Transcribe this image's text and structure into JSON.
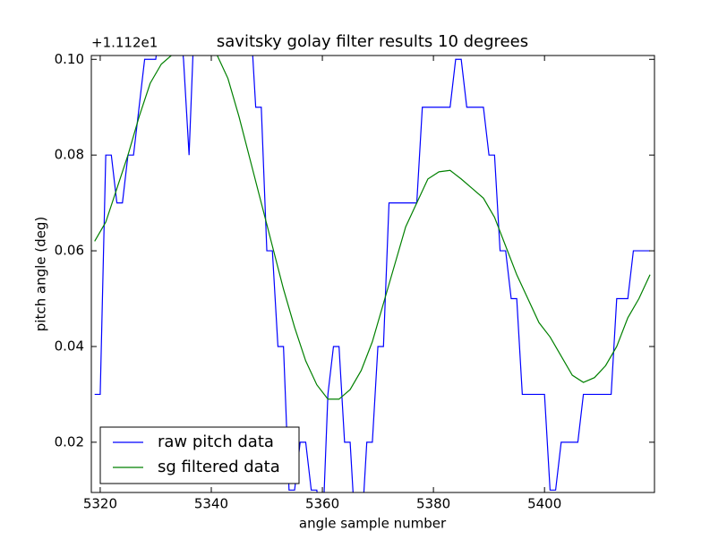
{
  "chart_data": {
    "type": "line",
    "title": "savitsky golay filter results 10 degrees",
    "xlabel": "angle sample number",
    "ylabel": "pitch angle (deg)",
    "offset_label": "+1.112e1",
    "xlim": [
      5318.4,
      5419.8
    ],
    "xticks": [
      5320,
      5340,
      5360,
      5380,
      5400
    ],
    "ylim": [
      0.0095,
      0.1008
    ],
    "yticks": [
      {
        "value": 0.02,
        "label": "0.02"
      },
      {
        "value": 0.04,
        "label": "0.04"
      },
      {
        "value": 0.06,
        "label": "0.06"
      },
      {
        "value": 0.08,
        "label": "0.08"
      },
      {
        "value": 0.1,
        "label": "0.10"
      }
    ],
    "grid": false,
    "legend": "lower left",
    "series": [
      {
        "name": "raw pitch data",
        "color": "#0000ff",
        "x": [
          5319,
          5320,
          5321,
          5322,
          5323,
          5324,
          5325,
          5326,
          5327,
          5328,
          5329,
          5330,
          5331,
          5332,
          5333,
          5334,
          5335,
          5336,
          5337,
          5338,
          5339,
          5340,
          5341,
          5342,
          5343,
          5344,
          5345,
          5346,
          5347,
          5348,
          5349,
          5350,
          5351,
          5352,
          5353,
          5354,
          5355,
          5356,
          5357,
          5358,
          5359,
          5360,
          5361,
          5362,
          5363,
          5364,
          5365,
          5366,
          5367,
          5368,
          5369,
          5370,
          5371,
          5372,
          5373,
          5374,
          5375,
          5376,
          5377,
          5378,
          5379,
          5380,
          5381,
          5382,
          5383,
          5384,
          5385,
          5386,
          5387,
          5388,
          5389,
          5390,
          5391,
          5392,
          5393,
          5394,
          5395,
          5396,
          5397,
          5398,
          5399,
          5400,
          5401,
          5402,
          5403,
          5404,
          5405,
          5406,
          5407,
          5408,
          5409,
          5410,
          5411,
          5412,
          5413,
          5414,
          5415,
          5416,
          5417,
          5418,
          5419
        ],
        "values": [
          0.03,
          0.03,
          0.08,
          0.08,
          0.07,
          0.07,
          0.08,
          0.08,
          0.09,
          0.1,
          0.1,
          0.1,
          0.11,
          0.11,
          0.11,
          0.11,
          0.1,
          0.08,
          0.11,
          0.11,
          0.11,
          0.11,
          0.11,
          0.11,
          0.11,
          0.11,
          0.11,
          0.11,
          0.11,
          0.09,
          0.09,
          0.06,
          0.06,
          0.04,
          0.04,
          0.01,
          0.01,
          0.02,
          0.02,
          0.01,
          0.01,
          0.0,
          0.03,
          0.04,
          0.04,
          0.02,
          0.02,
          0.0,
          0.0,
          0.02,
          0.02,
          0.04,
          0.04,
          0.07,
          0.07,
          0.07,
          0.07,
          0.07,
          0.07,
          0.09,
          0.09,
          0.09,
          0.09,
          0.09,
          0.09,
          0.1,
          0.1,
          0.09,
          0.09,
          0.09,
          0.09,
          0.08,
          0.08,
          0.06,
          0.06,
          0.05,
          0.05,
          0.03,
          0.03,
          0.03,
          0.03,
          0.03,
          0.01,
          0.01,
          0.02,
          0.02,
          0.02,
          0.02,
          0.03,
          0.03,
          0.03,
          0.03,
          0.03,
          0.03,
          0.05,
          0.05,
          0.05,
          0.06,
          0.06,
          0.06,
          0.06
        ]
      },
      {
        "name": "sg filtered data",
        "color": "#008000",
        "x": [
          5319,
          5321,
          5323,
          5325,
          5327,
          5329,
          5331,
          5333,
          5335,
          5337,
          5339,
          5341,
          5343,
          5345,
          5347,
          5349,
          5351,
          5353,
          5355,
          5357,
          5359,
          5361,
          5363,
          5365,
          5367,
          5369,
          5371,
          5373,
          5375,
          5377,
          5379,
          5381,
          5383,
          5385,
          5387,
          5389,
          5391,
          5393,
          5395,
          5397,
          5399,
          5401,
          5403,
          5405,
          5407,
          5409,
          5411,
          5413,
          5415,
          5417,
          5419
        ],
        "values": [
          0.062,
          0.066,
          0.073,
          0.08,
          0.088,
          0.095,
          0.099,
          0.101,
          0.102,
          0.103,
          0.102,
          0.101,
          0.096,
          0.088,
          0.079,
          0.07,
          0.061,
          0.052,
          0.044,
          0.037,
          0.032,
          0.029,
          0.029,
          0.031,
          0.035,
          0.041,
          0.049,
          0.057,
          0.065,
          0.07,
          0.075,
          0.0765,
          0.0768,
          0.075,
          0.073,
          0.071,
          0.067,
          0.061,
          0.055,
          0.05,
          0.045,
          0.042,
          0.038,
          0.034,
          0.0325,
          0.0335,
          0.036,
          0.04,
          0.046,
          0.05,
          0.055
        ]
      }
    ]
  }
}
